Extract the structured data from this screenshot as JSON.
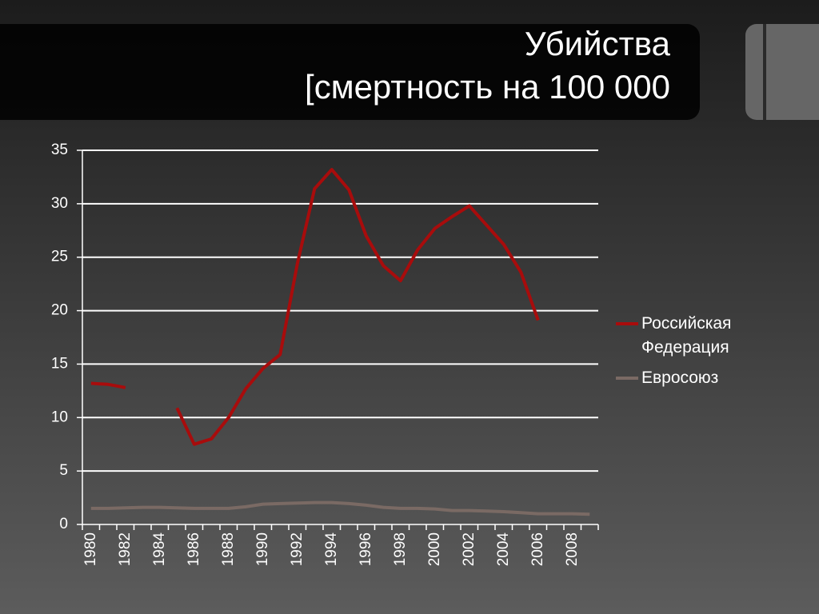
{
  "chart_data": {
    "type": "line",
    "title": "Убийства",
    "subtitle": "[смертность на 100 000",
    "categories": [
      "1980",
      null,
      "1982",
      null,
      "1984",
      null,
      "1986",
      null,
      "1988",
      null,
      "1990",
      null,
      "1992",
      null,
      "1994",
      null,
      "1996",
      null,
      "1998",
      null,
      "2000",
      null,
      "2002",
      null,
      "2004",
      null,
      "2006",
      null,
      "2008",
      null
    ],
    "series": [
      {
        "name": "Российская Федерация",
        "color": "#a80c0c",
        "values": [
          13.2,
          13.1,
          12.8,
          null,
          null,
          10.9,
          7.5,
          8.0,
          10.0,
          12.7,
          14.6,
          15.9,
          24.4,
          31.4,
          33.2,
          31.3,
          27.0,
          24.2,
          22.8,
          25.7,
          27.7,
          28.8,
          29.8,
          28.0,
          26.2,
          23.6,
          19.1,
          null,
          null,
          null
        ]
      },
      {
        "name": "Евросоюз",
        "color": "#7a6a64",
        "values": [
          1.5,
          1.5,
          1.55,
          1.6,
          1.6,
          1.55,
          1.5,
          1.5,
          1.5,
          1.65,
          1.9,
          1.95,
          2.0,
          2.05,
          2.05,
          1.95,
          1.8,
          1.6,
          1.5,
          1.5,
          1.45,
          1.3,
          1.3,
          1.25,
          1.2,
          1.1,
          1.0,
          1.0,
          1.0,
          0.95
        ]
      }
    ],
    "ylim": [
      0,
      35
    ],
    "yticks": [
      0,
      5,
      10,
      15,
      20,
      25,
      30,
      35
    ],
    "grid": true,
    "legend": "right"
  }
}
